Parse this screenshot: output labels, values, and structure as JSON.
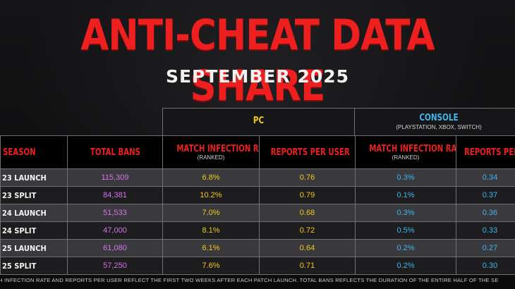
{
  "header": {
    "title": "ANTI-CHEAT DATA SHARE",
    "subtitle": "SEPTEMBER 2025"
  },
  "groups": {
    "pc": {
      "label": "PC"
    },
    "console": {
      "label": "CONSOLE",
      "sublabel": "(PLAYSTATION, XBOX, SWITCH)"
    }
  },
  "columns": {
    "season": "SEASON",
    "total_bans": "TOTAL BANS",
    "pc_match_infection_rate": "MATCH INFECTION RATE",
    "pc_match_infection_rate_sub": "(RANKED)",
    "pc_reports_per_user": "REPORTS PER USER",
    "console_match_infection_rate": "MATCH INFECTION RATE",
    "console_match_infection_rate_sub": "(RANKED)",
    "console_reports_per_user": "REPORTS PER"
  },
  "rows": [
    {
      "season": "23 LAUNCH",
      "total_bans": "115,309",
      "pc_mir": "6.8%",
      "pc_rpu": "0.76",
      "console_mir": "0.3%",
      "console_rpu": "0.34"
    },
    {
      "season": "23 SPLIT",
      "total_bans": "84,381",
      "pc_mir": "10.2%",
      "pc_rpu": "0.79",
      "console_mir": "0.1%",
      "console_rpu": "0.37"
    },
    {
      "season": "24 LAUNCH",
      "total_bans": "51,533",
      "pc_mir": "7.0%",
      "pc_rpu": "0.68",
      "console_mir": "0.3%",
      "console_rpu": "0.36"
    },
    {
      "season": "24 SPLIT",
      "total_bans": "47,000",
      "pc_mir": "8.1%",
      "pc_rpu": "0.72",
      "console_mir": "0.5%",
      "console_rpu": "0.33"
    },
    {
      "season": "25 LAUNCH",
      "total_bans": "61,080",
      "pc_mir": "6.1%",
      "pc_rpu": "0.64",
      "console_mir": "0.2%",
      "console_rpu": "0.27"
    },
    {
      "season": "25 SPLIT",
      "total_bans": "57,250",
      "pc_mir": "7.6%",
      "pc_rpu": "0.71",
      "console_mir": "0.2%",
      "console_rpu": "0.30"
    }
  ],
  "footnote": "H INFECTION RATE AND REPORTS PER USER REFLECT THE FIRST TWO WEEKS AFTER EACH PATCH LAUNCH. TOTAL BANS REFLECTS THE DURATION OF THE ENTIRE HALF OF THE SE",
  "colors": {
    "title_red": "#ee1f1f",
    "pc_yellow": "#f2c81a",
    "console_blue": "#3fb6ea",
    "bans_purple": "#d674e8"
  }
}
